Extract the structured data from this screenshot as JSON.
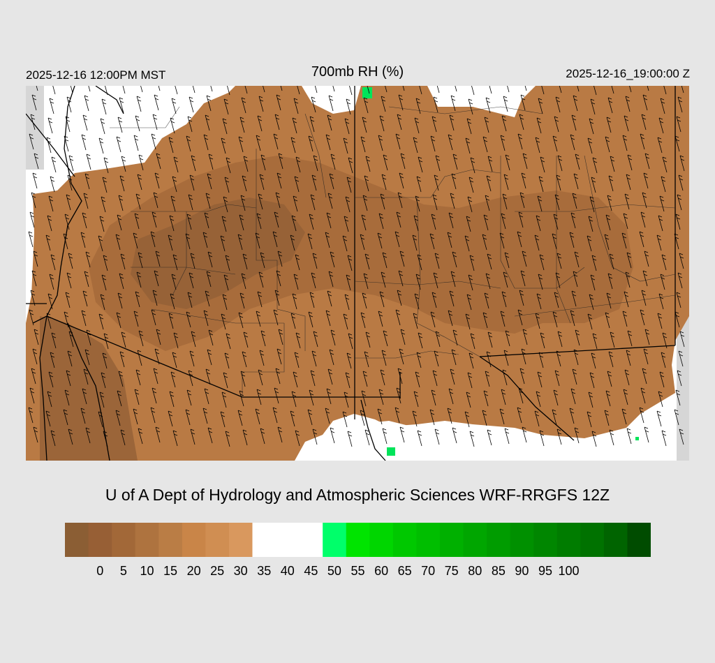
{
  "header": {
    "valid_local": "2025-12-16 12:00PM MST",
    "title": "700mb RH (%)",
    "valid_utc": "2025-12-16_19:00:00 Z"
  },
  "credit": "U of A Dept of Hydrology and Atmospheric Sciences WRF-RRGFS 12Z",
  "colorbar": {
    "colors": [
      "#8b5e34",
      "#975f35",
      "#a26838",
      "#ae733f",
      "#ba7d45",
      "#c98548",
      "#d08e52",
      "#d9985e",
      "#ffffff",
      "#ffffff",
      "#ffffff",
      "#00ff6a",
      "#00e400",
      "#00d600",
      "#00c800",
      "#00be00",
      "#00b000",
      "#00a600",
      "#009c00",
      "#009000",
      "#008600",
      "#007c00",
      "#007200",
      "#006400",
      "#004c00"
    ],
    "labels": [
      "0",
      "5",
      "10",
      "15",
      "20",
      "25",
      "30",
      "35",
      "40",
      "45",
      "50",
      "55",
      "60",
      "65",
      "70",
      "75",
      "80",
      "85",
      "90",
      "95",
      "100"
    ]
  },
  "map": {
    "colors": {
      "land_dry": "#b97a44",
      "land_drier": "#a86c3b",
      "land_driest": "#946037",
      "moist": "#ffffff",
      "wet": "#00e45a",
      "out_of_domain": "#d6d6d6"
    }
  }
}
